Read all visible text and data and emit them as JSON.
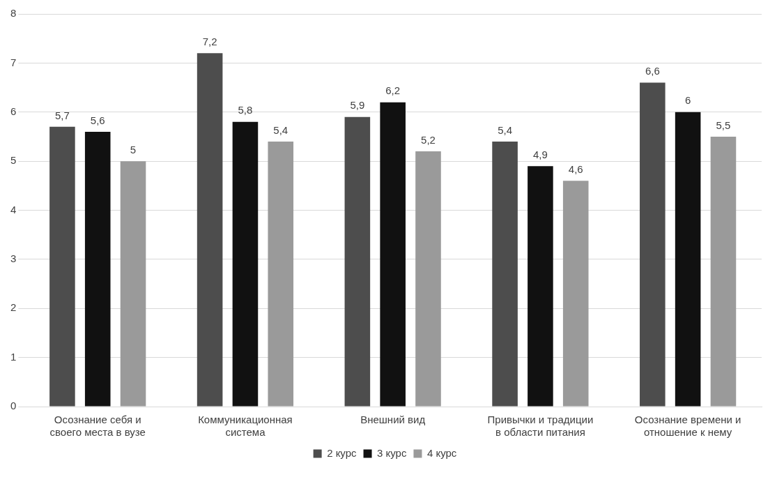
{
  "chart_data": {
    "type": "bar",
    "categories": [
      "Осознание себя и своего места в вузе",
      "Коммуникационная система",
      "Внешний вид",
      "Привычки и традиции в области питания",
      "Осознание времени и отношение к нему"
    ],
    "series": [
      {
        "name": "2 курс",
        "color": "#4d4d4d",
        "values": [
          5.7,
          7.2,
          5.9,
          5.4,
          6.6
        ],
        "value_labels": [
          "5,7",
          "7,2",
          "5,9",
          "5,4",
          "6,6"
        ]
      },
      {
        "name": "3 курс",
        "color": "#111111",
        "values": [
          5.6,
          5.8,
          6.2,
          4.9,
          6
        ],
        "value_labels": [
          "5,6",
          "5,8",
          "6,2",
          "4,9",
          "6"
        ]
      },
      {
        "name": "4 курс",
        "color": "#9a9a9a",
        "values": [
          5,
          5.4,
          5.2,
          4.6,
          5.5
        ],
        "value_labels": [
          "5",
          "5,4",
          "5,2",
          "4,6",
          "5,5"
        ]
      }
    ],
    "ylim": [
      0,
      8
    ],
    "yticks": [
      0,
      1,
      2,
      3,
      4,
      5,
      6,
      7,
      8
    ],
    "grid": "y",
    "legend": "bottom"
  }
}
